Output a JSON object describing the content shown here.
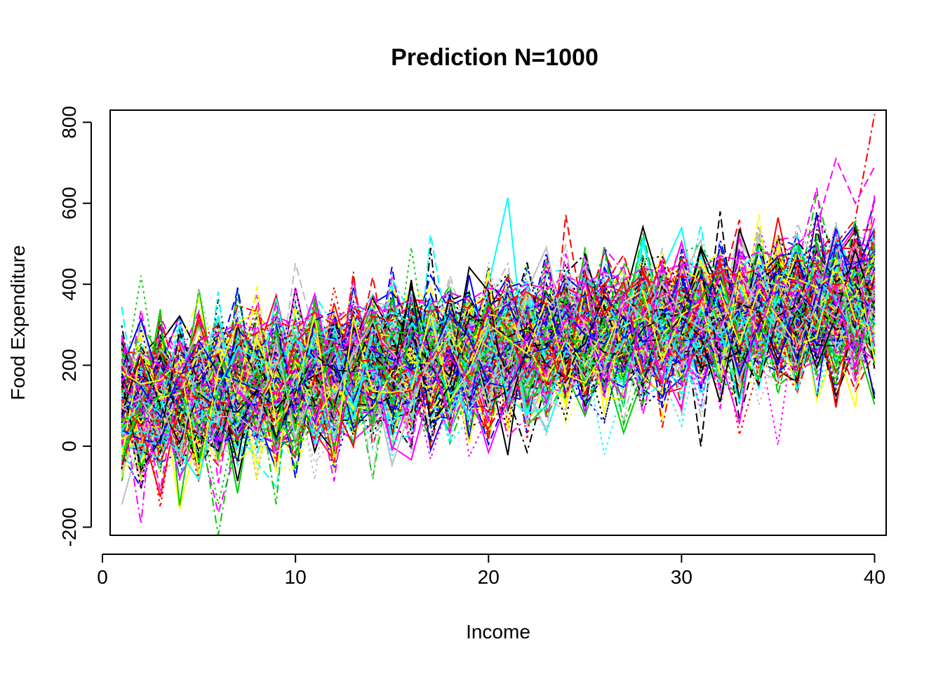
{
  "chart_data": {
    "type": "line",
    "title": "Prediction N=1000",
    "xlabel": "Income",
    "ylabel": "Food Expenditure",
    "xlim": [
      0.4,
      40.6
    ],
    "ylim": [
      -220,
      830
    ],
    "x_ticks": [
      0,
      10,
      20,
      30,
      40
    ],
    "y_ticks": [
      -200,
      0,
      200,
      400,
      600,
      800
    ],
    "x_tick_labels": [
      "0",
      "10",
      "20",
      "30",
      "40"
    ],
    "y_tick_labels": [
      "-200",
      "0",
      "200",
      "400",
      "600",
      "800"
    ],
    "grid": false,
    "legend": "none",
    "x": [
      1,
      2,
      3,
      4,
      5,
      6,
      7,
      8,
      9,
      10,
      11,
      12,
      13,
      14,
      15,
      16,
      17,
      18,
      19,
      20,
      21,
      22,
      23,
      24,
      25,
      26,
      27,
      28,
      29,
      30,
      31,
      32,
      33,
      34,
      35,
      36,
      37,
      38,
      39,
      40
    ],
    "series_count_drawn": 240,
    "mean_line": {
      "intercept": 92,
      "slope": 6.9
    },
    "noise_sd": 88,
    "palette": [
      "#000000",
      "#ff0000",
      "#00cd00",
      "#0000ff",
      "#00ffff",
      "#ff00ff",
      "#ffff00",
      "#bebebe"
    ],
    "line_styles": [
      "solid",
      "dashed",
      "dotted",
      "dotdash"
    ],
    "highlight_series": [
      {
        "color": "#ff0000",
        "style": "dotdash",
        "values": [
          140,
          210,
          180,
          150,
          260,
          300,
          250,
          280,
          310,
          290,
          330,
          300,
          340,
          320,
          310,
          350,
          330,
          360,
          340,
          370,
          360,
          380,
          350,
          390,
          370,
          400,
          380,
          410,
          400,
          420,
          410,
          430,
          420,
          440,
          430,
          460,
          450,
          500,
          560,
          820
        ]
      },
      {
        "color": "#ff00ff",
        "style": "dashed",
        "values": [
          160,
          230,
          200,
          190,
          260,
          280,
          300,
          290,
          320,
          300,
          330,
          310,
          350,
          330,
          340,
          360,
          350,
          380,
          360,
          390,
          380,
          400,
          390,
          420,
          400,
          430,
          410,
          440,
          430,
          450,
          440,
          470,
          460,
          480,
          470,
          500,
          540,
          710,
          600,
          690
        ]
      }
    ]
  }
}
